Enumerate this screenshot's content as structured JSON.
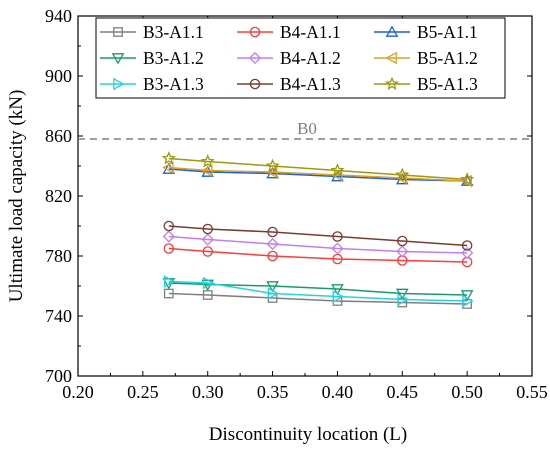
{
  "chart_data": {
    "type": "line",
    "title": "",
    "xlabel": "Discontinuity location (L)",
    "ylabel": "Ultimate load capacity (kN)",
    "xlim": [
      0.2,
      0.55
    ],
    "ylim": [
      700,
      940
    ],
    "x_ticks": [
      "0.20",
      "0.25",
      "0.30",
      "0.35",
      "0.40",
      "0.45",
      "0.50",
      "0.55"
    ],
    "y_ticks": [
      "700",
      "740",
      "780",
      "820",
      "860",
      "900",
      "940"
    ],
    "x": [
      0.27,
      0.3,
      0.35,
      0.4,
      0.45,
      0.5
    ],
    "grid": false,
    "legend_position": "top",
    "reference_line": {
      "label": "B0",
      "value": 858,
      "color": "#808080",
      "style": "dashed"
    },
    "series": [
      {
        "name": "B3-A1.1",
        "color": "#7f7f7f",
        "marker": "square",
        "values": [
          755,
          754,
          752,
          750,
          749,
          748
        ]
      },
      {
        "name": "B4-A1.1",
        "color": "#ff3b3b",
        "marker": "circle",
        "values": [
          785,
          783,
          780,
          778,
          777,
          776
        ]
      },
      {
        "name": "B5-A1.1",
        "color": "#1f5fd6",
        "marker": "triangle-up",
        "values": [
          838,
          836,
          835,
          833,
          831,
          830
        ]
      },
      {
        "name": "B3-A1.2",
        "color": "#1a9a6a",
        "marker": "triangle-down",
        "values": [
          762,
          761,
          760,
          758,
          755,
          754
        ]
      },
      {
        "name": "B4-A1.2",
        "color": "#c27ef0",
        "marker": "diamond",
        "values": [
          793,
          791,
          788,
          785,
          783,
          782
        ]
      },
      {
        "name": "B5-A1.2",
        "color": "#e0a020",
        "marker": "triangle-left",
        "values": [
          839,
          837,
          836,
          834,
          832,
          830
        ]
      },
      {
        "name": "B3-A1.3",
        "color": "#22d3e0",
        "marker": "triangle-right",
        "values": [
          763,
          762,
          755,
          753,
          751,
          750
        ]
      },
      {
        "name": "B4-A1.3",
        "color": "#7a3b2e",
        "marker": "circle",
        "values": [
          800,
          798,
          796,
          793,
          790,
          787
        ]
      },
      {
        "name": "B5-A1.3",
        "color": "#9a9a10",
        "marker": "star",
        "values": [
          845,
          843,
          840,
          837,
          834,
          831
        ]
      }
    ]
  }
}
